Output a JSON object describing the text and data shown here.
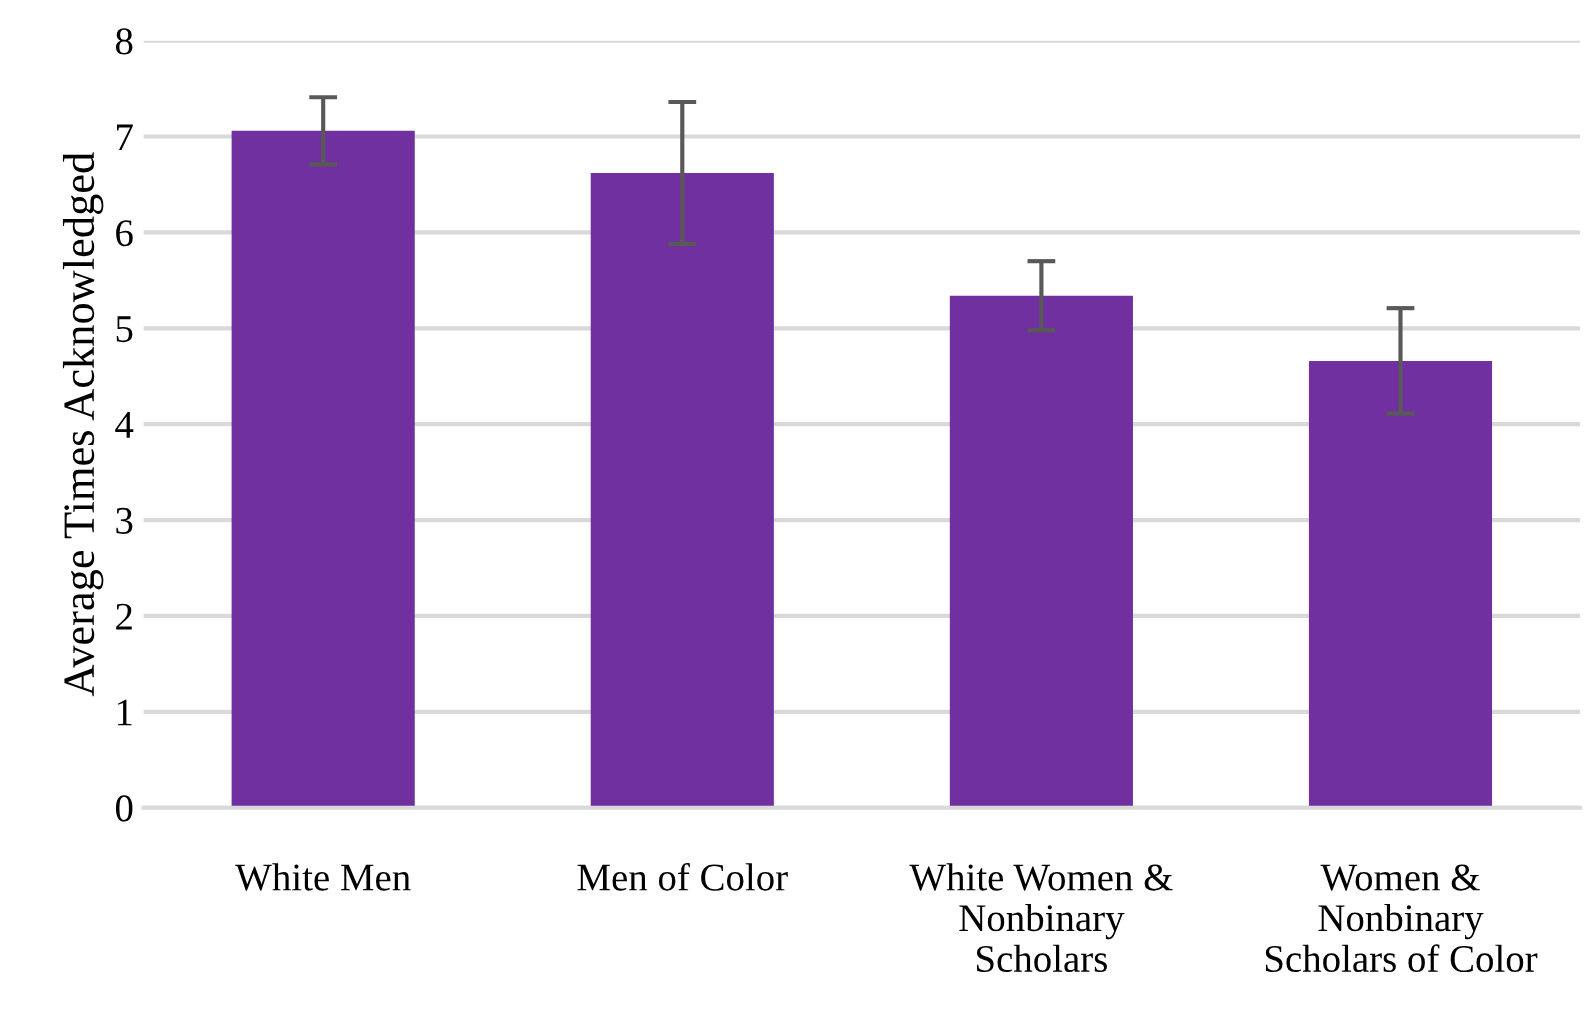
{
  "chart_data": {
    "type": "bar",
    "ylabel": "Average Times Acknowledged",
    "categories": [
      "White Men",
      "Men of Color",
      "White Women &\nNonbinary\nScholars",
      "Women &\nNonbinary\nScholars of Color"
    ],
    "values": [
      7.06,
      6.62,
      5.34,
      4.66
    ],
    "errors": [
      0.35,
      0.74,
      0.36,
      0.55
    ],
    "color": "#7030a0",
    "ylim": [
      0,
      8
    ],
    "yticks": [
      0,
      1,
      2,
      3,
      4,
      5,
      6,
      7,
      8
    ],
    "grid": "y"
  }
}
